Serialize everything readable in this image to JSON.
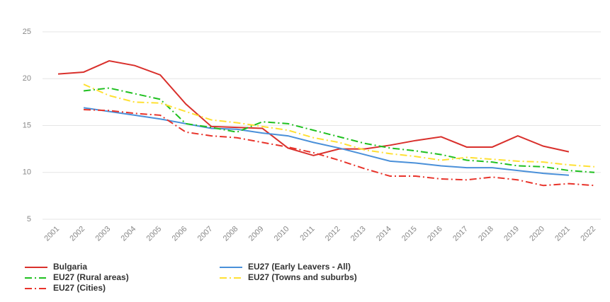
{
  "chart_data": {
    "type": "line",
    "categories": [
      "2001",
      "2002",
      "2003",
      "2004",
      "2005",
      "2006",
      "2007",
      "2008",
      "2009",
      "2010",
      "2011",
      "2012",
      "2013",
      "2014",
      "2015",
      "2016",
      "2017",
      "2018",
      "2019",
      "2020",
      "2021",
      "2022"
    ],
    "ylim": [
      5,
      25
    ],
    "yticks": [
      5,
      10,
      15,
      20,
      25
    ],
    "grid": true,
    "legend": "bottom-left",
    "series": [
      {
        "name": "Bulgaria",
        "color": "#d9302c",
        "style": "solid",
        "values": [
          20.5,
          20.7,
          21.9,
          21.4,
          20.4,
          17.3,
          14.9,
          14.8,
          14.7,
          12.6,
          11.8,
          12.5,
          12.5,
          12.9,
          13.4,
          13.8,
          12.7,
          12.7,
          13.9,
          12.8,
          12.2,
          null
        ]
      },
      {
        "name": "EU27 (Early Leavers - All)",
        "color": "#4a90d9",
        "style": "solid",
        "values": [
          null,
          16.9,
          16.5,
          16.1,
          15.7,
          15.2,
          14.7,
          14.6,
          14.2,
          13.9,
          13.2,
          12.6,
          11.9,
          11.2,
          11.0,
          10.7,
          10.5,
          10.5,
          10.2,
          9.9,
          9.7,
          null
        ]
      },
      {
        "name": "EU27 (Rural areas)",
        "color": "#1fc01f",
        "style": "dashdot",
        "values": [
          null,
          18.7,
          19.0,
          18.4,
          17.8,
          15.2,
          14.8,
          14.3,
          15.4,
          15.2,
          14.5,
          13.8,
          13.1,
          12.6,
          12.3,
          11.9,
          11.3,
          11.1,
          10.7,
          10.6,
          10.2,
          10.0
        ]
      },
      {
        "name": "EU27 (Towns and suburbs)",
        "color": "#ffe033",
        "style": "dashdot",
        "values": [
          null,
          19.4,
          18.2,
          17.5,
          17.4,
          16.5,
          15.6,
          15.3,
          14.9,
          14.5,
          13.7,
          13.2,
          12.4,
          12.0,
          11.7,
          11.3,
          11.6,
          11.4,
          11.2,
          11.1,
          10.8,
          10.6
        ]
      },
      {
        "name": "EU27 (Cities)",
        "color": "#e8332a",
        "style": "dashdot",
        "values": [
          null,
          16.7,
          16.6,
          16.3,
          16.1,
          14.3,
          13.9,
          13.7,
          13.2,
          12.7,
          12.1,
          11.3,
          10.4,
          9.6,
          9.6,
          9.3,
          9.2,
          9.5,
          9.2,
          8.6,
          8.8,
          8.6
        ]
      }
    ]
  }
}
